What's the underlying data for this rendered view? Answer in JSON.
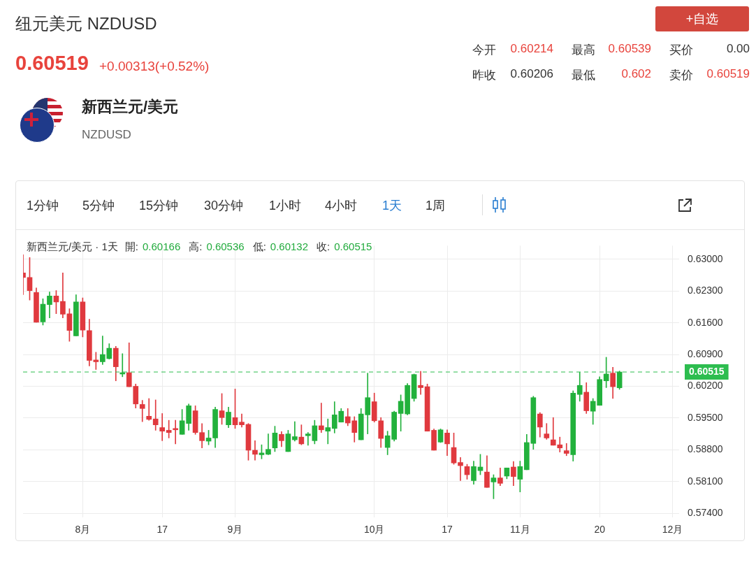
{
  "chart_data": {
    "type": "candlestick",
    "title": "纽元美元 NZDUSD",
    "annotations": [
      "0.60519",
      "+0.00313(+0.52%)",
      "今开",
      "0.60214",
      "最高",
      "0.60539",
      "买价",
      "0.00",
      "昨收",
      "0.60206",
      "最低",
      "0.602",
      "卖价",
      "0.60519",
      "新西兰元/美元",
      "NZDUSD",
      "1分钟",
      "5分钟",
      "15分钟",
      "30分钟",
      "1小时",
      "4小时",
      "1天",
      "1周",
      "+自选",
      "新西兰元/美元 · 1天",
      "開:",
      "0.60166",
      "高:",
      "0.60536",
      "低:",
      "0.60132",
      "收:",
      "0.60515"
    ],
    "categories": [
      null,
      null,
      null,
      null,
      null,
      null,
      null,
      null,
      null,
      "8月",
      null,
      null,
      null,
      null,
      null,
      null,
      null,
      null,
      null,
      null,
      null,
      "17",
      null,
      null,
      null,
      null,
      null,
      null,
      null,
      null,
      null,
      null,
      "9月",
      null,
      null,
      null,
      null,
      null,
      null,
      null,
      null,
      null,
      null,
      null,
      null,
      null,
      null,
      null,
      null,
      null,
      null,
      null,
      null,
      "10月",
      null,
      null,
      null,
      null,
      null,
      null,
      null,
      null,
      null,
      null,
      "17",
      null,
      null,
      null,
      null,
      null,
      null,
      null,
      null,
      null,
      null,
      "11月",
      null,
      null,
      null,
      null,
      null,
      null,
      null,
      null,
      null,
      null,
      null,
      "20",
      null,
      null,
      null,
      null,
      null,
      null,
      null,
      null,
      null,
      null,
      "12月",
      null
    ],
    "ohlc": [
      [
        0.627,
        0.631,
        0.6222,
        0.626
      ],
      [
        0.626,
        0.6304,
        0.621,
        0.6231
      ],
      [
        0.6227,
        0.6237,
        0.6161,
        0.6161
      ],
      [
        0.6162,
        0.6213,
        0.6155,
        0.6201
      ],
      [
        0.62,
        0.6228,
        0.6171,
        0.6219
      ],
      [
        0.6219,
        0.6231,
        0.618,
        0.6206
      ],
      [
        0.6207,
        0.627,
        0.6171,
        0.6179
      ],
      [
        0.618,
        0.6191,
        0.6119,
        0.6143
      ],
      [
        0.6131,
        0.6222,
        0.6131,
        0.6206
      ],
      [
        0.6206,
        0.6215,
        0.6129,
        0.6144
      ],
      [
        0.6143,
        0.6168,
        0.6065,
        0.6077
      ],
      [
        0.6078,
        0.6095,
        0.6057,
        0.6074
      ],
      [
        0.6074,
        0.6131,
        0.6068,
        0.609
      ],
      [
        0.6081,
        0.6114,
        0.608,
        0.6104
      ],
      [
        0.6104,
        0.6108,
        0.6032,
        0.6063
      ],
      [
        0.6047,
        0.6092,
        0.6041,
        0.605
      ],
      [
        0.605,
        0.6116,
        0.6019,
        0.6019
      ],
      [
        0.602,
        0.6025,
        0.5972,
        0.5981
      ],
      [
        0.598,
        0.5989,
        0.5942,
        0.5971
      ],
      [
        0.5954,
        0.5993,
        0.5945,
        0.5947
      ],
      [
        0.5948,
        0.599,
        0.5923,
        0.5935
      ],
      [
        0.5929,
        0.596,
        0.59,
        0.5921
      ],
      [
        0.5923,
        0.5945,
        0.5906,
        0.5918
      ],
      [
        0.5927,
        0.5945,
        0.5893,
        0.5924
      ],
      [
        0.5914,
        0.5969,
        0.5914,
        0.5944
      ],
      [
        0.5938,
        0.5981,
        0.5923,
        0.5977
      ],
      [
        0.5966,
        0.5977,
        0.5914,
        0.5918
      ],
      [
        0.5918,
        0.5938,
        0.5884,
        0.59
      ],
      [
        0.5899,
        0.5923,
        0.5891,
        0.5906
      ],
      [
        0.5906,
        0.5974,
        0.5885,
        0.5969
      ],
      [
        0.5966,
        0.6004,
        0.5936,
        0.5951
      ],
      [
        0.5935,
        0.5974,
        0.5929,
        0.5963
      ],
      [
        0.5951,
        0.6014,
        0.5927,
        0.5935
      ],
      [
        0.5941,
        0.5959,
        0.593,
        0.5935
      ],
      [
        0.5936,
        0.5938,
        0.5857,
        0.5879
      ],
      [
        0.5879,
        0.59,
        0.5857,
        0.587
      ],
      [
        0.5869,
        0.5891,
        0.586,
        0.5873
      ],
      [
        0.587,
        0.5915,
        0.5869,
        0.5881
      ],
      [
        0.5884,
        0.5932,
        0.5876,
        0.5917
      ],
      [
        0.5914,
        0.592,
        0.5887,
        0.59
      ],
      [
        0.5876,
        0.5923,
        0.5876,
        0.5915
      ],
      [
        0.5902,
        0.5942,
        0.5899,
        0.5909
      ],
      [
        0.5908,
        0.5935,
        0.5891,
        0.5893
      ],
      [
        0.5911,
        0.5918,
        0.589,
        0.5915
      ],
      [
        0.59,
        0.5945,
        0.5893,
        0.5933
      ],
      [
        0.5933,
        0.5983,
        0.5918,
        0.5924
      ],
      [
        0.5921,
        0.5948,
        0.5893,
        0.5929
      ],
      [
        0.5927,
        0.5986,
        0.5917,
        0.5957
      ],
      [
        0.5941,
        0.5971,
        0.5941,
        0.5965
      ],
      [
        0.5953,
        0.5971,
        0.5933,
        0.5939
      ],
      [
        0.5944,
        0.5953,
        0.5897,
        0.5918
      ],
      [
        0.5902,
        0.5971,
        0.5902,
        0.5959
      ],
      [
        0.5957,
        0.6049,
        0.5915,
        0.5995
      ],
      [
        0.5986,
        0.6005,
        0.5941,
        0.5944
      ],
      [
        0.5944,
        0.5951,
        0.5885,
        0.5905
      ],
      [
        0.5885,
        0.5921,
        0.5869,
        0.5911
      ],
      [
        0.5903,
        0.5965,
        0.5899,
        0.5963
      ],
      [
        0.596,
        0.6001,
        0.5921,
        0.5987
      ],
      [
        0.5959,
        0.6026,
        0.5957,
        0.6022
      ],
      [
        0.5993,
        0.6047,
        0.5987,
        0.6046
      ],
      [
        0.6022,
        0.6053,
        0.6002,
        0.6017
      ],
      [
        0.6019,
        0.6025,
        0.5921,
        0.5921
      ],
      [
        0.5923,
        0.5926,
        0.5879,
        0.5879
      ],
      [
        0.5897,
        0.5926,
        0.5896,
        0.5924
      ],
      [
        0.5917,
        0.5924,
        0.5867,
        0.5893
      ],
      [
        0.5885,
        0.5917,
        0.5848,
        0.5851
      ],
      [
        0.5852,
        0.5863,
        0.5812,
        0.5845
      ],
      [
        0.5843,
        0.5848,
        0.5815,
        0.5825
      ],
      [
        0.5812,
        0.5855,
        0.5804,
        0.5843
      ],
      [
        0.5834,
        0.587,
        0.5825,
        0.5842
      ],
      [
        0.5831,
        0.5867,
        0.5797,
        0.5797
      ],
      [
        0.5809,
        0.5825,
        0.5772,
        0.5818
      ],
      [
        0.5818,
        0.584,
        0.5801,
        0.5806
      ],
      [
        0.5822,
        0.584,
        0.5816,
        0.584
      ],
      [
        0.5842,
        0.5854,
        0.5801,
        0.5821
      ],
      [
        0.5815,
        0.5855,
        0.5787,
        0.5843
      ],
      [
        0.5836,
        0.5914,
        0.5836,
        0.5896
      ],
      [
        0.5894,
        0.5998,
        0.5881,
        0.5995
      ],
      [
        0.5959,
        0.5962,
        0.5908,
        0.593
      ],
      [
        0.5915,
        0.5938,
        0.5903,
        0.5906
      ],
      [
        0.5902,
        0.5951,
        0.589,
        0.589
      ],
      [
        0.5891,
        0.5908,
        0.5875,
        0.5884
      ],
      [
        0.5878,
        0.5894,
        0.5867,
        0.5872
      ],
      [
        0.5869,
        0.601,
        0.5855,
        0.6005
      ],
      [
        0.6002,
        0.6051,
        0.5987,
        0.6022
      ],
      [
        0.6007,
        0.6028,
        0.596,
        0.5966
      ],
      [
        0.5965,
        0.5993,
        0.5936,
        0.5987
      ],
      [
        0.5978,
        0.6041,
        0.5978,
        0.6035
      ],
      [
        0.6032,
        0.6084,
        0.6017,
        0.6047
      ],
      [
        0.6049,
        0.6062,
        0.5993,
        0.6019
      ],
      [
        0.60166,
        0.60536,
        0.60132,
        0.60515
      ],
      null,
      null,
      null,
      null,
      null,
      null,
      null,
      null,
      null
    ],
    "colors": [
      "#e0393e",
      "#e0393e",
      "#e0393e",
      "#22b13c",
      "#22b13c",
      "#e0393e",
      "#e0393e",
      "#e0393e",
      "#22b13c",
      "#e0393e",
      "#e0393e",
      "#e0393e",
      "#22b13c",
      "#22b13c",
      "#e0393e",
      "#22b13c",
      "#e0393e",
      "#e0393e",
      "#e0393e",
      "#e0393e",
      "#e0393e",
      "#e0393e",
      "#e0393e",
      "#e0393e",
      "#22b13c",
      "#22b13c",
      "#e0393e",
      "#e0393e",
      "#22b13c",
      "#22b13c",
      "#e0393e",
      "#22b13c",
      "#e0393e",
      "#e0393e",
      "#e0393e",
      "#e0393e",
      "#22b13c",
      "#22b13c",
      "#22b13c",
      "#e0393e",
      "#22b13c",
      "#22b13c",
      "#e0393e",
      "#22b13c",
      "#22b13c",
      "#e0393e",
      "#22b13c",
      "#22b13c",
      "#22b13c",
      "#e0393e",
      "#e0393e",
      "#22b13c",
      "#22b13c",
      "#e0393e",
      "#e0393e",
      "#22b13c",
      "#22b13c",
      "#22b13c",
      "#22b13c",
      "#22b13c",
      "#e0393e",
      "#e0393e",
      "#e0393e",
      "#22b13c",
      "#e0393e",
      "#e0393e",
      "#e0393e",
      "#e0393e",
      "#22b13c",
      "#22b13c",
      "#e0393e",
      "#22b13c",
      "#e0393e",
      "#22b13c",
      "#e0393e",
      "#22b13c",
      "#22b13c",
      "#22b13c",
      "#e0393e",
      "#e0393e",
      "#e0393e",
      "#e0393e",
      "#e0393e",
      "#22b13c",
      "#22b13c",
      "#e0393e",
      "#22b13c",
      "#22b13c",
      "#22b13c",
      "#e0393e",
      "#22b13c",
      null,
      null,
      null,
      null,
      null,
      null,
      null,
      null,
      null
    ],
    "ylim": [
      0.5731,
      0.633
    ],
    "yticks": [
      {
        "value": 0.63,
        "label": "0.63000"
      },
      {
        "value": 0.623,
        "label": "0.62300"
      },
      {
        "value": 0.616,
        "label": "0.61600"
      },
      {
        "value": 0.609,
        "label": "0.60900"
      },
      {
        "value": 0.602,
        "label": "0.60200"
      },
      {
        "value": 0.595,
        "label": "0.59500"
      },
      {
        "value": 0.588,
        "label": "0.58800"
      },
      {
        "value": 0.581,
        "label": "0.58100"
      },
      {
        "value": 0.574,
        "label": "0.57400"
      }
    ],
    "grid": true,
    "ref_lines": [
      {
        "axis": "y",
        "value": 0.60515,
        "label": "0.60515",
        "color": "#2dbd4f",
        "line_style": "dashed"
      }
    ]
  }
}
